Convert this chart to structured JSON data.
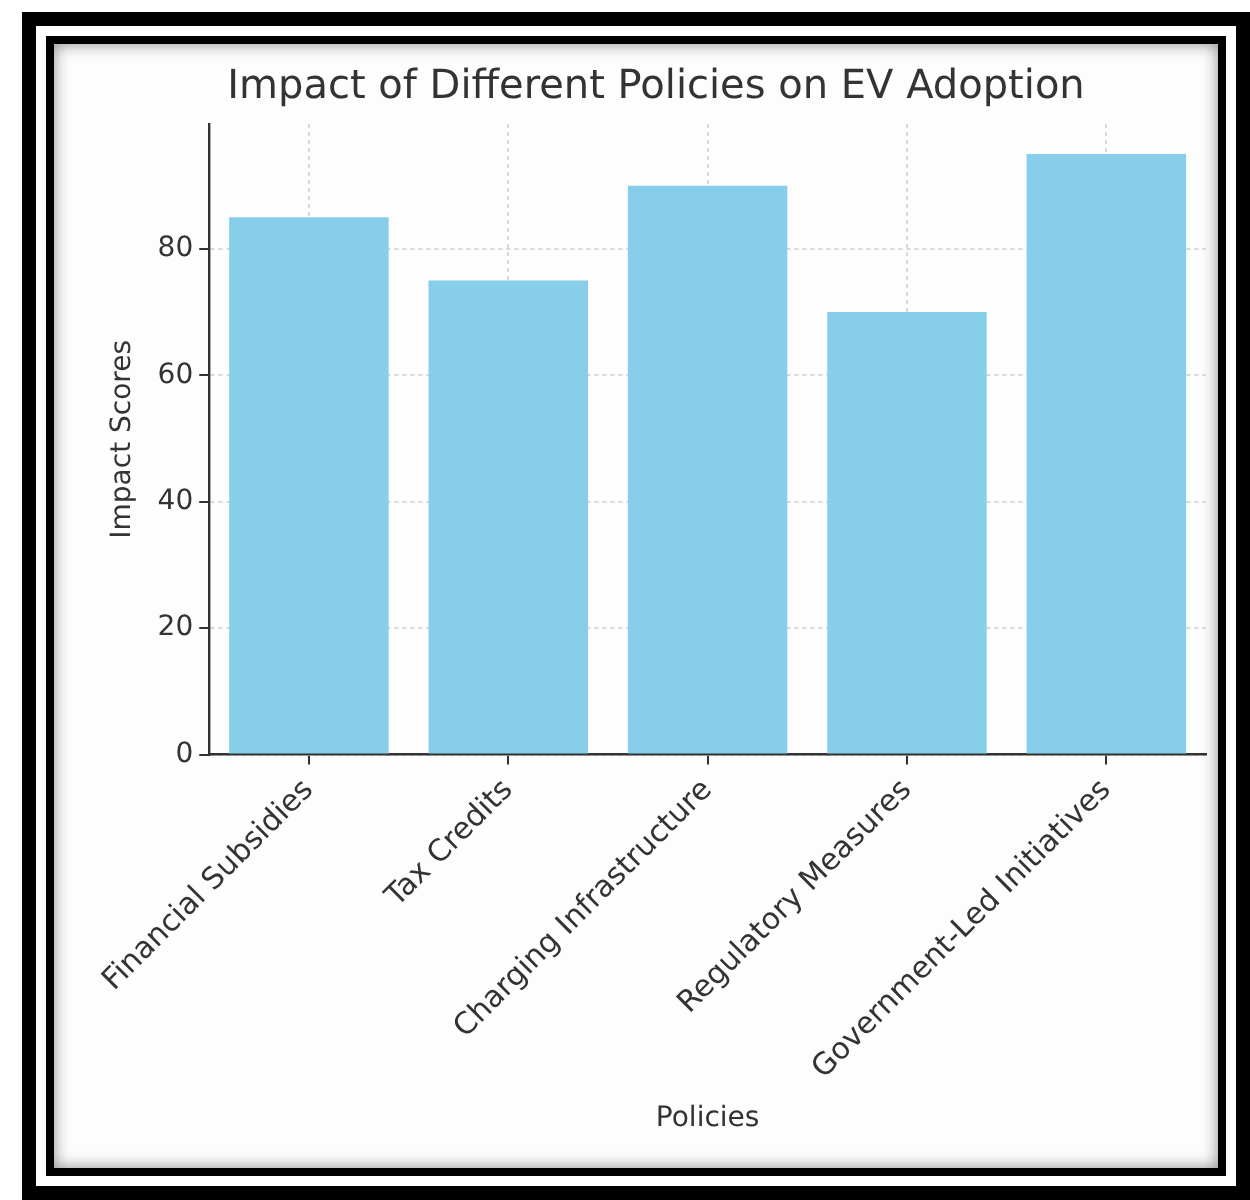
{
  "chart_data": {
    "type": "bar",
    "title": "Impact of Different Policies on EV Adoption",
    "xlabel": "Policies",
    "ylabel": "Impact Scores",
    "categories": [
      "Financial Subsidies",
      "Tax Credits",
      "Charging Infrastructure",
      "Regulatory Measures",
      "Government-Led Initiatives"
    ],
    "values": [
      85,
      75,
      90,
      70,
      95
    ],
    "color": "#87ceeb",
    "ylim": [
      0,
      99.75
    ],
    "yticks": [
      0,
      20,
      40,
      60,
      80
    ],
    "grid": true
  }
}
